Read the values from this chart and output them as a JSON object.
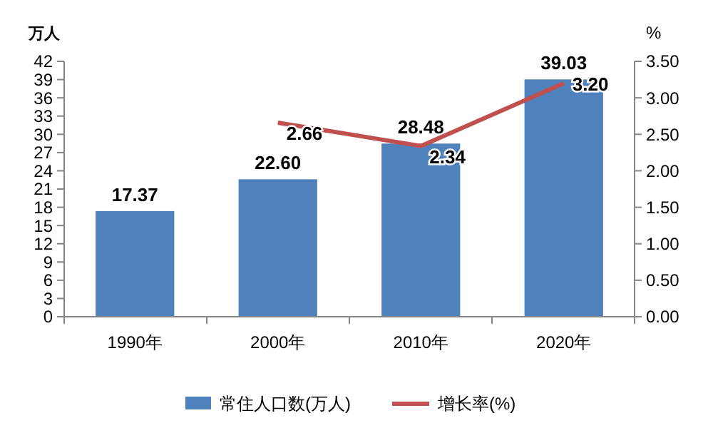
{
  "chart_data": {
    "type": "bar",
    "categories": [
      "1990年",
      "2000年",
      "2010年",
      "2020年"
    ],
    "ylabel": "万人",
    "y2label": "%",
    "series": [
      {
        "name": "常住人口数(万人)",
        "color": "#4f81bd",
        "values": [
          17.37,
          22.6,
          28.48,
          39.03
        ],
        "value_labels": [
          "17.37",
          "22.60",
          "28.48",
          "39.03"
        ]
      },
      {
        "name": "增长率(%)",
        "type": "line",
        "axis": "y2",
        "color": "#c0504d",
        "values": [
          null,
          2.66,
          2.34,
          3.2
        ],
        "value_labels": [
          null,
          "2.66",
          "2.34",
          "3.20"
        ]
      }
    ],
    "ylim": [
      0,
      42
    ],
    "yticks": [
      0,
      3,
      6,
      9,
      12,
      15,
      18,
      21,
      24,
      27,
      30,
      33,
      36,
      39,
      42
    ],
    "y2lim": [
      0,
      3.5
    ],
    "y2ticks": [
      {
        "value": 0,
        "label": "0.00"
      },
      {
        "value": 0.5,
        "label": "0.50"
      },
      {
        "value": 1,
        "label": "1.00"
      },
      {
        "value": 1.5,
        "label": "1.50"
      },
      {
        "value": 2,
        "label": "2.00"
      },
      {
        "value": 2.5,
        "label": "2.50"
      },
      {
        "value": 3,
        "label": "3.00"
      },
      {
        "value": 3.5,
        "label": "3.50"
      }
    ],
    "legend": "bottom",
    "grid": false,
    "marker": "none",
    "line_style": "solid"
  }
}
